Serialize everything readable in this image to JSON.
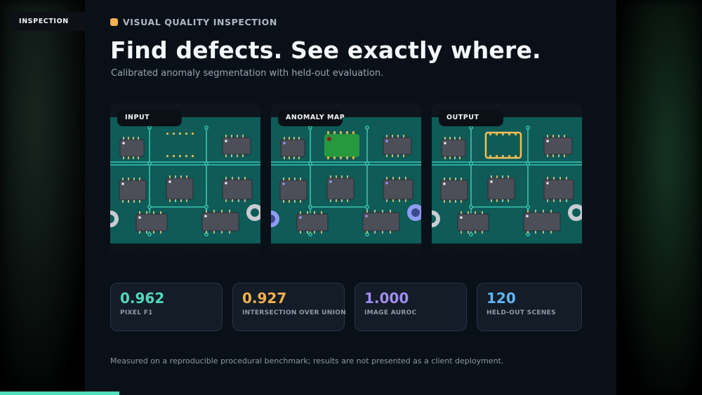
{
  "section_tag": "INSPECTION",
  "eyebrow": {
    "label": "VISUAL QUALITY INSPECTION",
    "dot_color": "#f5b14c"
  },
  "title": "Find defects. See exactly where.",
  "subtitle": "Calibrated anomaly segmentation with held-out evaluation.",
  "panels": [
    {
      "label": "INPUT"
    },
    {
      "label": "ANOMALY MAP"
    },
    {
      "label": "OUTPUT"
    }
  ],
  "metrics": [
    {
      "value": "0.962",
      "label": "PIXEL F1",
      "color": "#4fd8bd"
    },
    {
      "value": "0.927",
      "label": "INTERSECTION OVER UNION",
      "color": "#f2b04d"
    },
    {
      "value": "1.000",
      "label": "IMAGE AUROC",
      "color": "#a08cf0"
    },
    {
      "value": "120",
      "label": "HELD-OUT SCENES",
      "color": "#5eb6f5"
    }
  ],
  "footnote": "Measured on a reproducible procedural benchmark; results are not presented as a client deployment.",
  "progress": {
    "fraction": 0.17,
    "color": "#4fe0be"
  }
}
